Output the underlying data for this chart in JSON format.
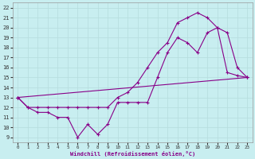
{
  "xlabel": "Windchill (Refroidissement éolien,°C)",
  "background_color": "#c8eef0",
  "grid_color": "#b8dfe0",
  "line_color": "#880088",
  "xlim": [
    -0.5,
    23.5
  ],
  "ylim": [
    8.5,
    22.5
  ],
  "yticks": [
    9,
    10,
    11,
    12,
    13,
    14,
    15,
    16,
    17,
    18,
    19,
    20,
    21,
    22
  ],
  "xticks": [
    0,
    1,
    2,
    3,
    4,
    5,
    6,
    7,
    8,
    9,
    10,
    11,
    12,
    13,
    14,
    15,
    16,
    17,
    18,
    19,
    20,
    21,
    22,
    23
  ],
  "line1_x": [
    0,
    1,
    2,
    3,
    4,
    5,
    6,
    7,
    8,
    9,
    10,
    11,
    12,
    13,
    14,
    15,
    16,
    17,
    18,
    19,
    20,
    21,
    22,
    23
  ],
  "line1_y": [
    13,
    12,
    11.5,
    11.5,
    11,
    11,
    9.0,
    10.3,
    9.3,
    10.3,
    12.5,
    12.5,
    12.5,
    12.5,
    15,
    17.5,
    19.0,
    18.5,
    17.5,
    19.5,
    20.0,
    15.5,
    15.2,
    15.0
  ],
  "line2_x": [
    0,
    1,
    2,
    3,
    4,
    5,
    6,
    7,
    8,
    9,
    10,
    11,
    12,
    13,
    14,
    15,
    16,
    17,
    18,
    19,
    20,
    21,
    22,
    23
  ],
  "line2_y": [
    13,
    12,
    12,
    12,
    12,
    12,
    12,
    12,
    12,
    12,
    13.0,
    13.5,
    14.5,
    16.0,
    17.5,
    18.5,
    20.5,
    21.0,
    21.5,
    21.0,
    20.0,
    19.5,
    16.0,
    15.0
  ],
  "line3_x": [
    0,
    23
  ],
  "line3_y": [
    13,
    15
  ]
}
